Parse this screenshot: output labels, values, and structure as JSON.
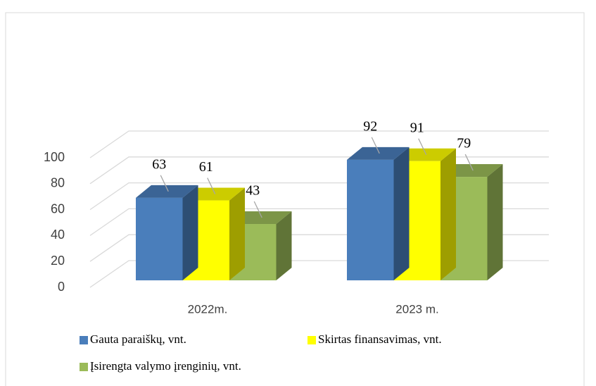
{
  "chart_data": {
    "type": "bar3d",
    "categories": [
      "2022m.",
      "2023 m."
    ],
    "series": [
      {
        "name": "Gauta paraiškų, vnt.",
        "color": "#4a7ebb",
        "values": [
          63,
          92
        ]
      },
      {
        "name": "Skirtas finansavimas, vnt.",
        "color": "#ffff00",
        "values": [
          61,
          91
        ]
      },
      {
        "name": "Įsirengta valymo įrenginių, vnt.",
        "color": "#9bbb59",
        "values": [
          43,
          79
        ]
      }
    ],
    "ylim": [
      0,
      100
    ],
    "yticks": [
      0,
      20,
      40,
      60,
      80,
      100
    ],
    "grid": true
  }
}
